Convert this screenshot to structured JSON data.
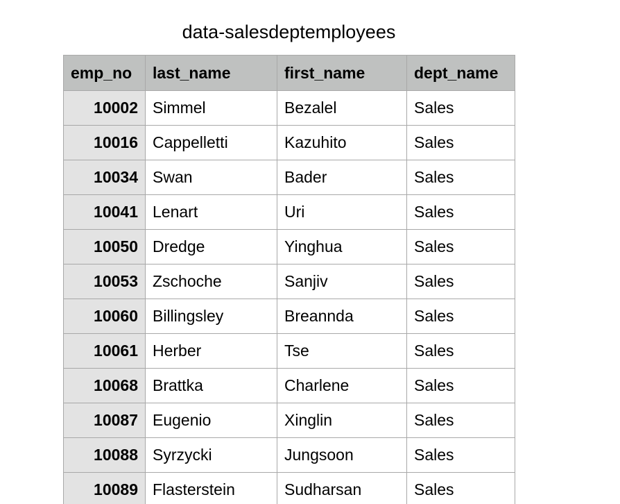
{
  "sheet": {
    "title": "data-salesdeptemployees",
    "columns": [
      "emp_no",
      "last_name",
      "first_name",
      "dept_name"
    ],
    "rows": [
      [
        "10002",
        "Simmel",
        "Bezalel",
        "Sales"
      ],
      [
        "10016",
        "Cappelletti",
        "Kazuhito",
        "Sales"
      ],
      [
        "10034",
        "Swan",
        "Bader",
        "Sales"
      ],
      [
        "10041",
        "Lenart",
        "Uri",
        "Sales"
      ],
      [
        "10050",
        "Dredge",
        "Yinghua",
        "Sales"
      ],
      [
        "10053",
        "Zschoche",
        "Sanjiv",
        "Sales"
      ],
      [
        "10060",
        "Billingsley",
        "Breannda",
        "Sales"
      ],
      [
        "10061",
        "Herber",
        "Tse",
        "Sales"
      ],
      [
        "10068",
        "Brattka",
        "Charlene",
        "Sales"
      ],
      [
        "10087",
        "Eugenio",
        "Xinglin",
        "Sales"
      ],
      [
        "10088",
        "Syrzycki",
        "Jungsoon",
        "Sales"
      ],
      [
        "10089",
        "Flasterstein",
        "Sudharsan",
        "Sales"
      ]
    ]
  }
}
